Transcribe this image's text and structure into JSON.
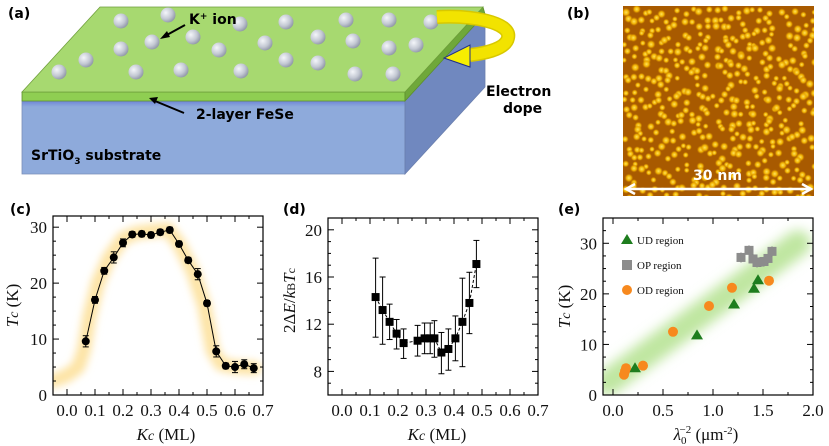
{
  "panels": {
    "a": {
      "label": "(a)",
      "ion_label": "K",
      "ion_sup": "+",
      "ion_suffix": " ion",
      "layer_label": "2-layer FeSe",
      "substrate_label_pre": "SrTiO",
      "substrate_label_sub": "3",
      "substrate_label_post": " substrate",
      "dope_line1": "Electron",
      "dope_line2": "dope",
      "colors": {
        "top": "#a7d970",
        "edge": "#74b23c",
        "front": "#8eaadb",
        "side": "#6f8cc0",
        "ion": "#c9cdd6",
        "arrow": "#f2e300"
      }
    },
    "b": {
      "label": "(b)",
      "scale_label": "30 nm",
      "colors": {
        "dark": "#8a3e00",
        "bright": "#ffd640"
      }
    },
    "c": {
      "label": "(c)"
    },
    "d": {
      "label": "(d)"
    },
    "e": {
      "label": "(e)"
    }
  },
  "chart_data": [
    {
      "id": "c",
      "type": "line",
      "xlabel_main": "K",
      "xlabel_sub": "c",
      "xlabel_unit": " (ML)",
      "ylabel_main": "T",
      "ylabel_sub": "c",
      "ylabel_unit": " (K)",
      "xlim": [
        -0.05,
        0.7
      ],
      "ylim": [
        0,
        32
      ],
      "xticks": [
        "0.0",
        "0.1",
        "0.2",
        "0.3",
        "0.4",
        "0.5",
        "0.6",
        "0.7"
      ],
      "xtick_values": [
        0,
        0.1,
        0.2,
        0.3,
        0.4,
        0.5,
        0.6,
        0.7
      ],
      "yticks": [
        "0",
        "10",
        "20",
        "30"
      ],
      "ytick_values": [
        0,
        10,
        20,
        30
      ],
      "series": [
        {
          "name": "Tc",
          "marker": "circle",
          "color": "#000000",
          "x": [
            0.067,
            0.1,
            0.133,
            0.167,
            0.2,
            0.233,
            0.267,
            0.3,
            0.333,
            0.367,
            0.4,
            0.433,
            0.467,
            0.5,
            0.533,
            0.567,
            0.6,
            0.633,
            0.667
          ],
          "y": [
            9.6,
            17.0,
            22.2,
            24.6,
            27.2,
            28.7,
            28.8,
            28.6,
            29.1,
            29.5,
            27.0,
            24.1,
            21.6,
            16.4,
            7.8,
            5.2,
            5.0,
            5.5,
            4.8
          ],
          "err": [
            1.0,
            0.6,
            0.6,
            1.0,
            0.7,
            0.5,
            0.5,
            0.5,
            0.5,
            0.5,
            0.5,
            0.5,
            1.0,
            0.5,
            1.0,
            0.5,
            1.0,
            0.8,
            0.8
          ]
        }
      ],
      "guide_band": {
        "color": "#fde4a6",
        "x": [
          -0.05,
          0.0,
          0.04,
          0.06,
          0.08,
          0.11,
          0.15,
          0.2,
          0.25,
          0.3,
          0.36,
          0.4,
          0.45,
          0.49,
          0.52,
          0.55,
          0.6,
          0.67
        ],
        "y": [
          2.5,
          3.5,
          5,
          8,
          14,
          20,
          24.5,
          28,
          29,
          29.3,
          29.6,
          27,
          22,
          16,
          8,
          5.5,
          5.0,
          4.8
        ]
      }
    },
    {
      "id": "d",
      "type": "line",
      "xlabel_main": "K",
      "xlabel_sub": "c",
      "xlabel_unit": " (ML)",
      "ylabel": "2ΔE/kBTc",
      "ylabel_parts": {
        "pre": "2Δ",
        "E": "E",
        "slash": "/",
        "k": "k",
        "ksub": "B",
        "T": "T",
        "tsub": "c"
      },
      "xlim": [
        -0.05,
        0.7
      ],
      "ylim": [
        6,
        21
      ],
      "xticks": [
        "0.0",
        "0.1",
        "0.2",
        "0.3",
        "0.4",
        "0.5",
        "0.6",
        "0.7"
      ],
      "xtick_values": [
        0,
        0.1,
        0.2,
        0.3,
        0.4,
        0.5,
        0.6,
        0.7
      ],
      "yticks": [
        "8",
        "12",
        "16",
        "20"
      ],
      "ytick_values": [
        8,
        12,
        16,
        20
      ],
      "series": [
        {
          "name": "2ΔE/kBTc",
          "marker": "square",
          "color": "#000000",
          "x": [
            0.12,
            0.145,
            0.17,
            0.195,
            0.22,
            0.27,
            0.295,
            0.315,
            0.33,
            0.355,
            0.38,
            0.405,
            0.43,
            0.455,
            0.48
          ],
          "y": [
            14.3,
            13.2,
            12.2,
            11.2,
            10.4,
            10.6,
            10.8,
            10.8,
            10.8,
            9.6,
            9.9,
            10.8,
            12.2,
            13.8,
            17.1
          ],
          "err_low": [
            3.4,
            2.9,
            1.5,
            1.3,
            1.3,
            1.3,
            1.3,
            1.3,
            1.6,
            1.8,
            1.8,
            1.9,
            3.8,
            2.6,
            2.0
          ],
          "err_high": [
            3.3,
            2.8,
            1.5,
            1.2,
            1.2,
            1.3,
            1.3,
            1.3,
            1.5,
            1.7,
            1.7,
            1.9,
            3.7,
            2.6,
            2.0
          ]
        }
      ]
    },
    {
      "id": "e",
      "type": "scatter",
      "xlabel": "λ0^-2 (μm^-2)",
      "xlabel_parts": {
        "lambda": "λ",
        "sub": "0",
        "sup": "−2",
        "unit": " (μm",
        "unitsup": "-2",
        "close": ")"
      },
      "ylabel_main": "T",
      "ylabel_sub": "c",
      "ylabel_unit": " (K)",
      "xlim": [
        -0.1,
        2.0
      ],
      "ylim": [
        0,
        35
      ],
      "xticks": [
        "0.0",
        "0.5",
        "1.0",
        "1.5",
        "2.0"
      ],
      "xtick_values": [
        0,
        0.5,
        1.0,
        1.5,
        2.0
      ],
      "yticks": [
        "0",
        "10",
        "20",
        "30"
      ],
      "ytick_values": [
        0,
        10,
        20,
        30
      ],
      "legend_position": "top-left",
      "guide_band": {
        "color": "#bfe6a0",
        "x": [
          -0.05,
          1.85
        ],
        "y": [
          2.5,
          30
        ]
      },
      "series": [
        {
          "name": "UD region",
          "marker": "triangle",
          "color": "#1e7d1e",
          "x": [
            0.22,
            0.84,
            1.21,
            1.41,
            1.45
          ],
          "y": [
            5.3,
            11.8,
            17.9,
            21.0,
            22.7
          ]
        },
        {
          "name": "OP region",
          "marker": "square",
          "color": "#8c8c8c",
          "x": [
            1.28,
            1.36,
            1.4,
            1.44,
            1.47,
            1.51,
            1.55,
            1.59
          ],
          "y": [
            27.2,
            28.6,
            26.9,
            26.2,
            26.3,
            26.4,
            27.0,
            28.4
          ]
        },
        {
          "name": "OD region",
          "marker": "circle",
          "color": "#f7891e",
          "x": [
            0.11,
            0.12,
            0.13,
            0.3,
            0.6,
            0.96,
            1.19,
            1.56
          ],
          "y": [
            4.0,
            4.7,
            5.3,
            5.8,
            12.5,
            17.6,
            21.2,
            22.6
          ]
        }
      ]
    }
  ]
}
